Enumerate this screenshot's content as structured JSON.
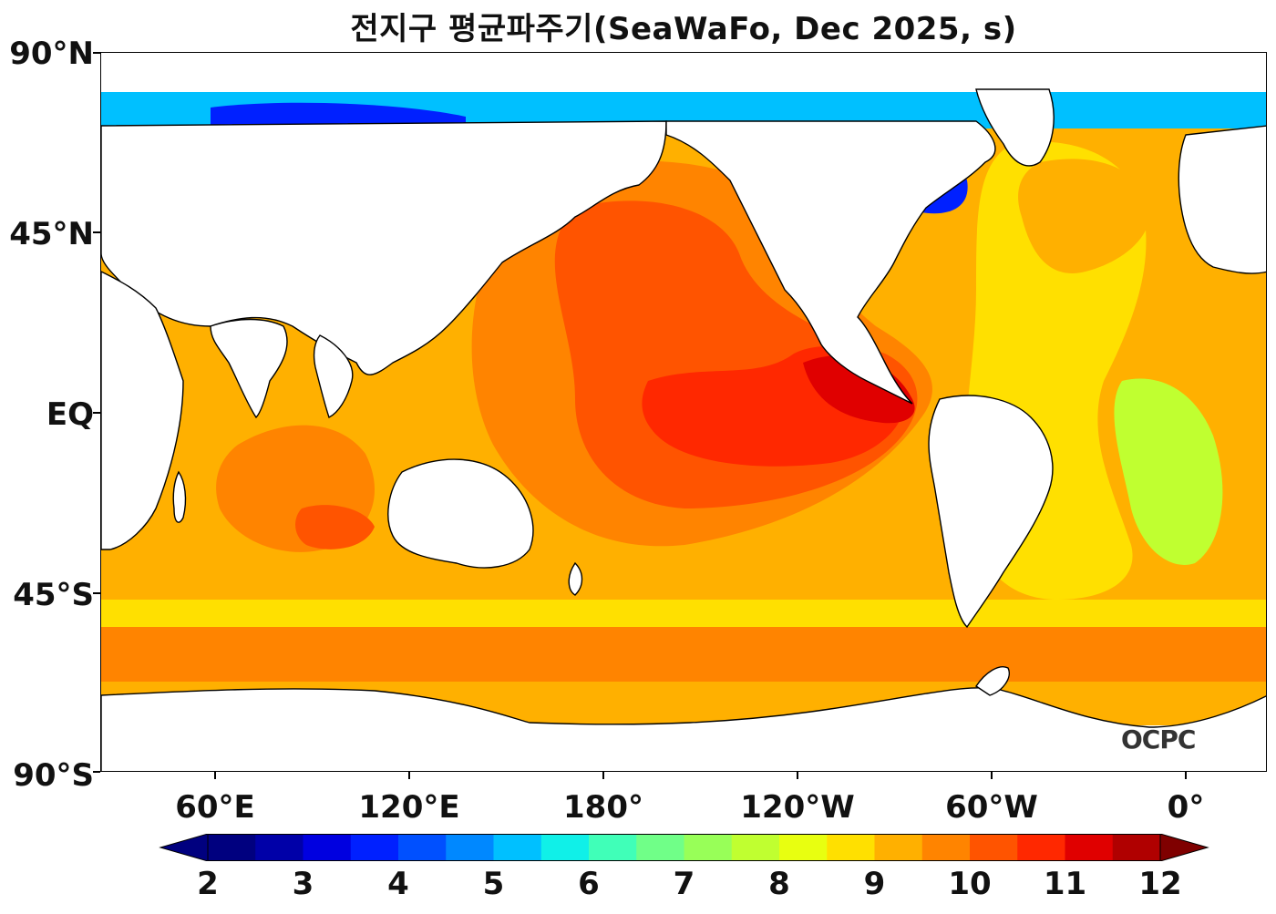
{
  "title": "전지구 평균파주기(SeaWaFo, Dec 2025, s)",
  "y_axis": {
    "labels": [
      "90°N",
      "45°N",
      "EQ",
      "45°S",
      "90°S"
    ]
  },
  "x_axis": {
    "labels": [
      "60°E",
      "120°E",
      "180°",
      "120°W",
      "60°W",
      "0°"
    ]
  },
  "colorbar": {
    "min": 2,
    "max": 12,
    "step": 0.5,
    "extend": "both",
    "tick_labels": [
      "2",
      "3",
      "4",
      "5",
      "6",
      "7",
      "8",
      "9",
      "10",
      "11",
      "12"
    ],
    "colors": [
      "#00007f",
      "#0000a8",
      "#0000e0",
      "#0020ff",
      "#0050ff",
      "#0088ff",
      "#00c0ff",
      "#10f0e8",
      "#40ffb8",
      "#70ff88",
      "#98ff58",
      "#c0ff30",
      "#e8ff10",
      "#ffe000",
      "#ffb000",
      "#ff8400",
      "#ff5400",
      "#ff2800",
      "#e00000",
      "#b00000"
    ],
    "under_color": "#00007f",
    "over_color": "#7f0000"
  },
  "logo": "OCPC",
  "colors": {
    "land": "#ffffff",
    "coastline": "#000000"
  },
  "map_extent": {
    "lon_range": [
      25,
      385
    ],
    "lat_range": [
      -90,
      90
    ],
    "data_lat_range": [
      -78,
      80
    ]
  }
}
